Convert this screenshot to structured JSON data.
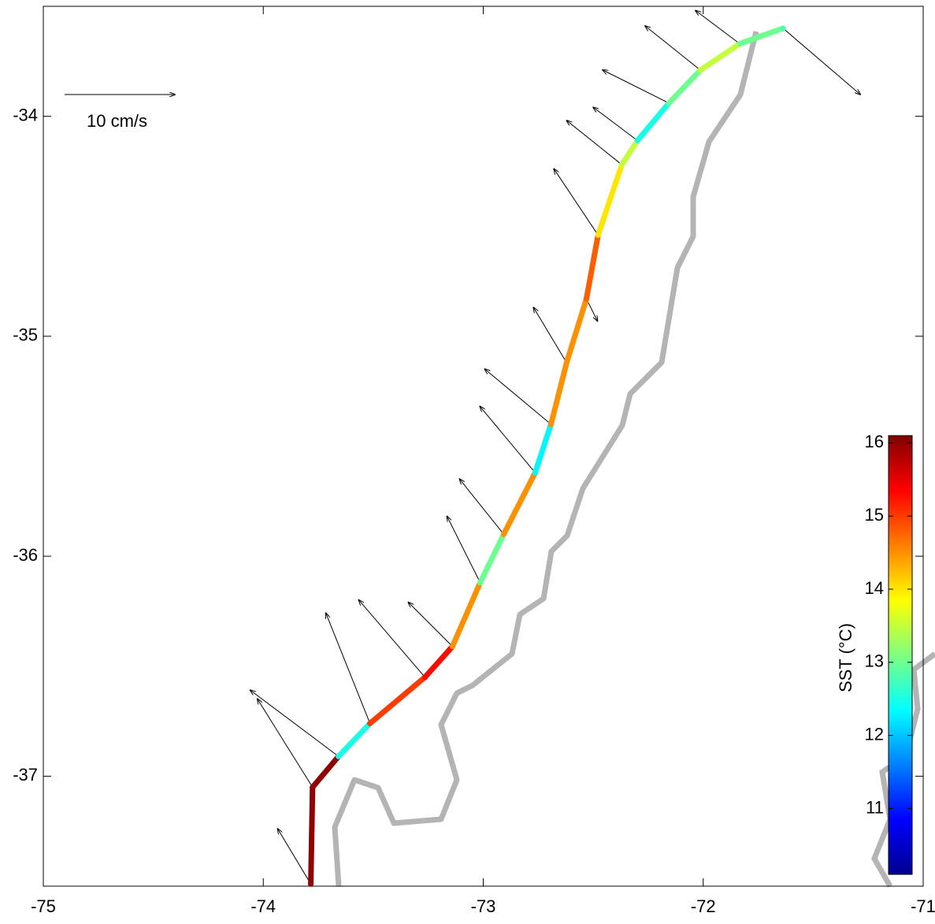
{
  "chart_data": {
    "type": "quiver-track",
    "xlim": [
      -75,
      -71
    ],
    "ylim": [
      -37.5,
      -33.5
    ],
    "xticks": [
      -75,
      -74,
      -73,
      -72,
      -71
    ],
    "yticks": [
      -34,
      -35,
      -36,
      -37
    ],
    "track": {
      "lon": [
        -73.784,
        -73.776,
        -73.658,
        -73.515,
        -73.265,
        -73.14,
        -73.014,
        -72.907,
        -72.764,
        -72.692,
        -72.621,
        -72.531,
        -72.478,
        -72.37,
        -72.299,
        -72.156,
        -72.013,
        -71.834,
        -71.637
      ],
      "lat": [
        -37.49,
        -37.05,
        -36.91,
        -36.76,
        -36.55,
        -36.41,
        -36.12,
        -35.9,
        -35.62,
        -35.4,
        -35.12,
        -34.83,
        -34.54,
        -34.22,
        -34.11,
        -33.94,
        -33.79,
        -33.67,
        -33.6
      ],
      "sst": [
        16,
        16,
        12.5,
        15,
        15.3,
        14.5,
        13,
        14.5,
        12.3,
        14.5,
        14.5,
        14.8,
        14,
        13.5,
        12.5,
        13,
        13.5,
        13,
        12.8
      ]
    },
    "vectors": {
      "u": [
        -3,
        -5,
        -8,
        -4,
        -6,
        -4,
        -3,
        -4,
        -5,
        -6,
        -3,
        1,
        -4,
        -5,
        -4,
        -6,
        -5,
        -4,
        7
      ],
      "v": [
        5,
        8,
        6,
        10,
        7,
        4,
        6,
        5,
        6,
        5,
        5,
        -2,
        6,
        4,
        3,
        3,
        4,
        3,
        -6
      ]
    },
    "scale_arrow": {
      "value": 10,
      "label": "10 cm/s"
    },
    "colorbar": {
      "label": "SST (°C)",
      "clim": [
        10.1,
        16.1
      ],
      "ticks": [
        11,
        12,
        13,
        14,
        15,
        16
      ],
      "colormap": "jet"
    }
  }
}
